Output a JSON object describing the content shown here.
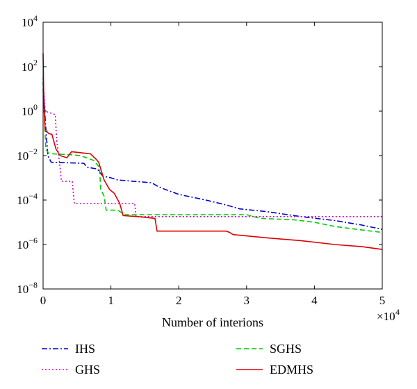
{
  "chart_data": {
    "type": "line",
    "title": "",
    "xlabel": "Number of interions",
    "ylabel": "",
    "x_multiplier_label": "×10",
    "x_multiplier_exp": "4",
    "xlim": [
      0,
      50000
    ],
    "ylim": [
      1e-08,
      10000.0
    ],
    "yscale": "log",
    "grid": false,
    "legend_position": "below",
    "xticks": [
      {
        "value": 0,
        "label": "0"
      },
      {
        "value": 10000,
        "label": "1"
      },
      {
        "value": 20000,
        "label": "2"
      },
      {
        "value": 30000,
        "label": "3"
      },
      {
        "value": 40000,
        "label": "4"
      },
      {
        "value": 50000,
        "label": "5"
      }
    ],
    "yticks": [
      {
        "value": 1e-08,
        "base": "10",
        "exp": "−8"
      },
      {
        "value": 1e-06,
        "base": "10",
        "exp": "−6"
      },
      {
        "value": 0.0001,
        "base": "10",
        "exp": "−4"
      },
      {
        "value": 0.01,
        "base": "10",
        "exp": "−2"
      },
      {
        "value": 1,
        "base": "10",
        "exp": "0"
      },
      {
        "value": 100,
        "base": "10",
        "exp": "2"
      },
      {
        "value": 10000,
        "base": "10",
        "exp": "4"
      }
    ],
    "series": [
      {
        "name": "IHS",
        "color": "#0000cc",
        "dash": "dashdot",
        "points": [
          [
            0,
            20
          ],
          [
            300,
            0.5
          ],
          [
            700,
            0.01
          ],
          [
            1200,
            0.005
          ],
          [
            6000,
            0.0045
          ],
          [
            6500,
            0.003
          ],
          [
            8000,
            0.0025
          ],
          [
            8800,
            0.0012
          ],
          [
            10000,
            0.001
          ],
          [
            11000,
            0.0008
          ],
          [
            16000,
            0.0006
          ],
          [
            17000,
            0.0004
          ],
          [
            18000,
            0.0003
          ],
          [
            20000,
            0.00018
          ],
          [
            24000,
            0.0001
          ],
          [
            27000,
            6e-05
          ],
          [
            29000,
            4e-05
          ],
          [
            33000,
            3e-05
          ],
          [
            38000,
            1.8e-05
          ],
          [
            43000,
            1.2e-05
          ],
          [
            47000,
            7.5e-06
          ],
          [
            50000,
            4.8e-06
          ]
        ]
      },
      {
        "name": "GHS",
        "color": "#cc00cc",
        "dash": "dotted",
        "points": [
          [
            0,
            30
          ],
          [
            300,
            1
          ],
          [
            1800,
            0.7
          ],
          [
            2000,
            0.05
          ],
          [
            2300,
            0.01
          ],
          [
            2500,
            0.003
          ],
          [
            2700,
            0.0007
          ],
          [
            4300,
            0.0007
          ],
          [
            4600,
            7e-05
          ],
          [
            9000,
            7e-05
          ],
          [
            13500,
            7e-05
          ],
          [
            13700,
            1.8e-05
          ],
          [
            50000,
            1.8e-05
          ]
        ]
      },
      {
        "name": "SGHS",
        "color": "#00cc00",
        "dash": "dashed",
        "points": [
          [
            0,
            10
          ],
          [
            400,
            0.02
          ],
          [
            800,
            0.013
          ],
          [
            1500,
            0.012
          ],
          [
            4000,
            0.011
          ],
          [
            5500,
            0.01
          ],
          [
            7500,
            0.006
          ],
          [
            8300,
            0.003
          ],
          [
            8500,
            0.0003
          ],
          [
            9000,
            0.00015
          ],
          [
            9300,
            3.5e-05
          ],
          [
            11000,
            3.5e-05
          ],
          [
            12000,
            2.2e-05
          ],
          [
            30000,
            2.2e-05
          ],
          [
            32000,
            1.5e-05
          ],
          [
            37000,
            1.3e-05
          ],
          [
            40000,
            1e-05
          ],
          [
            43000,
            6.5e-06
          ],
          [
            47000,
            4.5e-06
          ],
          [
            50000,
            3.5e-06
          ]
        ]
      },
      {
        "name": "EDMHS",
        "color": "#dd0000",
        "dash": "solid",
        "points": [
          [
            0,
            400
          ],
          [
            100,
            3
          ],
          [
            300,
            0.15
          ],
          [
            800,
            0.1
          ],
          [
            1300,
            0.09
          ],
          [
            1900,
            0.02
          ],
          [
            2500,
            0.01
          ],
          [
            3500,
            0.008
          ],
          [
            4200,
            0.015
          ],
          [
            7000,
            0.012
          ],
          [
            7800,
            0.007
          ],
          [
            8200,
            0.005
          ],
          [
            9000,
            0.0008
          ],
          [
            9800,
            0.0003
          ],
          [
            10500,
            0.0002
          ],
          [
            11300,
            7e-05
          ],
          [
            11800,
            2e-05
          ],
          [
            14000,
            1.8e-05
          ],
          [
            16500,
            1.5e-05
          ],
          [
            16800,
            4e-06
          ],
          [
            27000,
            4e-06
          ],
          [
            27500,
            3.5e-06
          ],
          [
            28000,
            2.8e-06
          ],
          [
            33000,
            2e-06
          ],
          [
            38000,
            1.5e-06
          ],
          [
            43000,
            1e-06
          ],
          [
            47000,
            8e-07
          ],
          [
            50000,
            6e-07
          ]
        ]
      }
    ]
  },
  "colors": {
    "axis": "#000000",
    "background": "#ffffff"
  }
}
